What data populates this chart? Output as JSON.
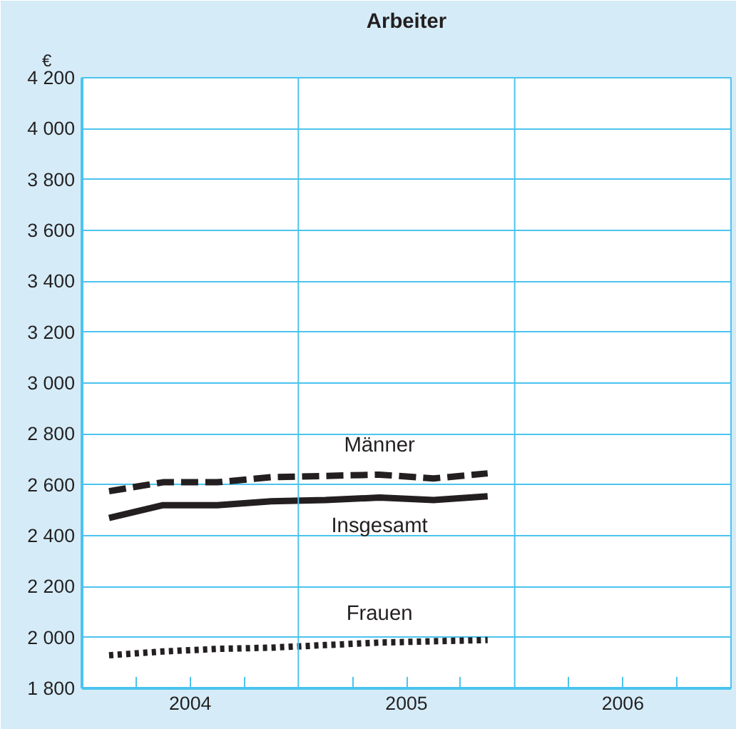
{
  "chart_data": {
    "type": "line",
    "title": "Arbeiter",
    "ylabel": "€",
    "x": [
      2004.125,
      2004.375,
      2004.625,
      2004.875,
      2005.125,
      2005.375,
      2005.625,
      2005.875
    ],
    "series": [
      {
        "name": "Männer",
        "color": "#231f20",
        "line_style": "dashed",
        "values": [
          2575,
          2610,
          2610,
          2630,
          2635,
          2640,
          2625,
          2645
        ]
      },
      {
        "name": "Insgesamt",
        "color": "#231f20",
        "line_style": "solid",
        "values": [
          2470,
          2520,
          2520,
          2535,
          2540,
          2550,
          2540,
          2555
        ]
      },
      {
        "name": "Frauen",
        "color": "#231f20",
        "line_style": "dotted",
        "values": [
          1930,
          1945,
          1955,
          1960,
          1970,
          1980,
          1985,
          1990
        ]
      }
    ],
    "xlim": [
      2004,
      2007
    ],
    "xticks": [
      {
        "value": 2004.25,
        "label": null
      },
      {
        "value": 2004.5,
        "label": "2004"
      },
      {
        "value": 2004.75,
        "label": null
      },
      {
        "value": 2005.25,
        "label": null
      },
      {
        "value": 2005.5,
        "label": "2005"
      },
      {
        "value": 2005.75,
        "label": null
      },
      {
        "value": 2006.25,
        "label": null
      },
      {
        "value": 2006.5,
        "label": "2006"
      },
      {
        "value": 2006.75,
        "label": null
      }
    ],
    "ylim": [
      1800,
      4200
    ],
    "yticks": [
      {
        "value": 1800,
        "label": "1 800"
      },
      {
        "value": 2000,
        "label": "2 000"
      },
      {
        "value": 2200,
        "label": "2 200"
      },
      {
        "value": 2400,
        "label": "2 400"
      },
      {
        "value": 2600,
        "label": "2 600"
      },
      {
        "value": 2800,
        "label": "2 800"
      },
      {
        "value": 3000,
        "label": "3 000"
      },
      {
        "value": 3200,
        "label": "3 200"
      },
      {
        "value": 3400,
        "label": "3 400"
      },
      {
        "value": 3600,
        "label": "3 600"
      },
      {
        "value": 3800,
        "label": "3 800"
      },
      {
        "value": 4000,
        "label": "4 000"
      },
      {
        "value": 4200,
        "label": "4 200"
      }
    ],
    "ref_lines": [
      {
        "axis": "x",
        "value": 2005,
        "color": "#4cc3ee"
      },
      {
        "axis": "x",
        "value": 2006,
        "color": "#4cc3ee"
      }
    ],
    "grid": "y",
    "marker": "none"
  }
}
